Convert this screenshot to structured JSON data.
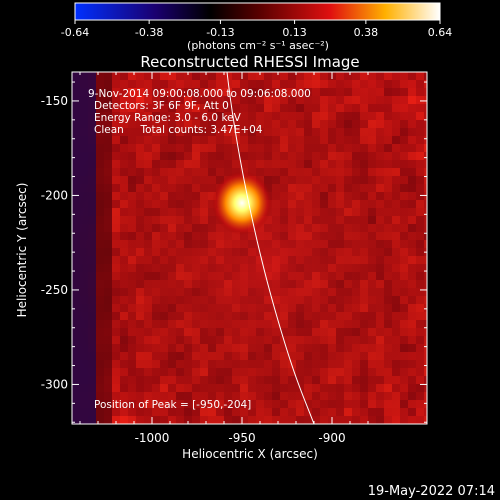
{
  "colorbar": {
    "ticks": [
      "-0.64",
      "-0.38",
      "-0.13",
      "0.13",
      "0.38",
      "0.64"
    ],
    "unit_label": "(photons cm⁻² s⁻¹ asec⁻²)",
    "range": [
      -0.64,
      0.64
    ],
    "colormap": "blue-black-red-yellow-white"
  },
  "plot": {
    "title": "Reconstructed RHESSI Image",
    "info": {
      "time": "9-Nov-2014 09:00:08.000 to 09:06:08.000",
      "detectors": "Detectors: 3F 6F 9F, Att 0",
      "energy": "Energy Range: 3.0 - 6.0 keV",
      "clean": "Clean     Total counts: 3.47E+04"
    },
    "peak_label": "Position of Peak = [-950,-204]"
  },
  "chart_data": {
    "type": "heatmap",
    "title": "Reconstructed RHESSI Image",
    "xlabel": "Heliocentric X (arcsec)",
    "ylabel": "Heliocentric Y (arcsec)",
    "xlim": [
      -1046,
      -954
    ],
    "ylim": [
      -326,
      -136
    ],
    "x_ticks": [
      {
        "v": -1000,
        "label": "-1000"
      },
      {
        "v": -950,
        "label": "-950"
      },
      {
        "v": -900,
        "label": "-900"
      }
    ],
    "y_ticks": [
      {
        "v": -150,
        "label": "-150"
      },
      {
        "v": -200,
        "label": "-200"
      },
      {
        "v": -250,
        "label": "-250"
      },
      {
        "v": -300,
        "label": "-300"
      }
    ],
    "peak": {
      "x": -950,
      "y": -204
    },
    "limb": "white curve",
    "grid": false
  },
  "timestamp": "19-May-2022 07:14"
}
